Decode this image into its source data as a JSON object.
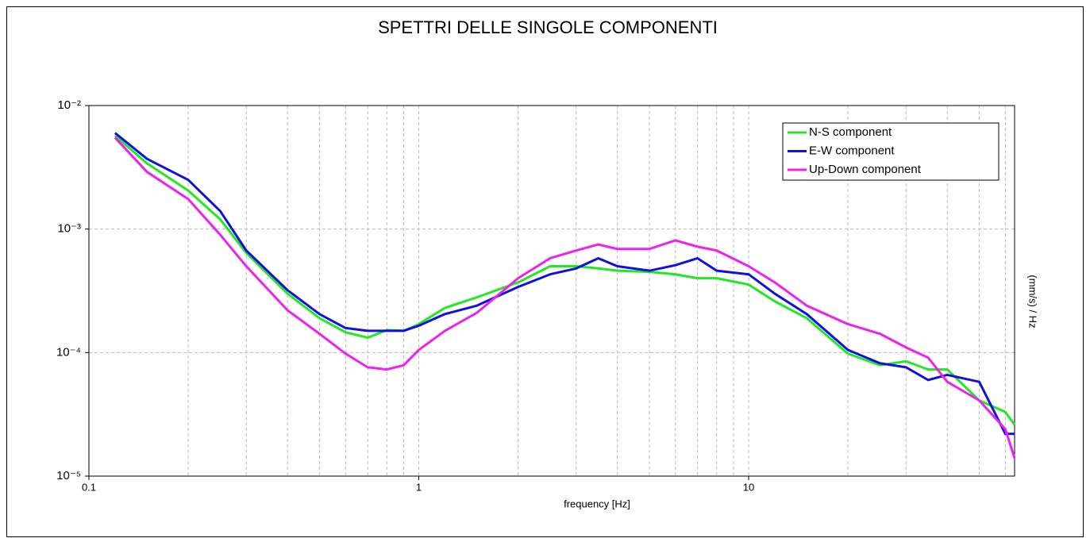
{
  "chart_data": {
    "type": "line",
    "title": "SPETTRI DELLE SINGOLE COMPONENTI",
    "xlabel": "frequency [Hz]",
    "ylabel": "(mm/s) / Hz",
    "xscale": "log",
    "yscale": "log",
    "xlim": [
      0.1,
      64
    ],
    "ylim": [
      1e-05,
      0.01
    ],
    "xticks": [
      0.1,
      1,
      10
    ],
    "xminorticks": [
      0.2,
      0.3,
      0.4,
      0.5,
      0.6,
      0.7,
      0.8,
      0.9,
      2,
      3,
      4,
      5,
      6,
      7,
      8,
      9,
      20,
      30,
      40,
      50,
      60
    ],
    "yticks": [
      {
        "value": 0.01,
        "label": "10⁻²"
      },
      {
        "value": 0.001,
        "label": "10⁻³"
      },
      {
        "value": 0.0001,
        "label": "10⁻⁴"
      },
      {
        "value": 1e-05,
        "label": "10⁻⁵"
      }
    ],
    "grid": true,
    "legend": "upper right",
    "x": [
      0.12,
      0.15,
      0.2,
      0.25,
      0.3,
      0.4,
      0.5,
      0.6,
      0.7,
      0.8,
      0.9,
      1,
      1.2,
      1.5,
      2,
      2.5,
      3,
      3.5,
      4,
      5,
      6,
      7,
      8,
      10,
      12,
      15,
      20,
      25,
      30,
      35,
      40,
      50,
      60,
      64
    ],
    "series": [
      {
        "name": "N-S component",
        "color": "#22e822",
        "values": [
          0.0057,
          0.0034,
          0.00205,
          0.0012,
          0.00064,
          0.0003,
          0.00019,
          0.000146,
          0.000132,
          0.000152,
          0.00015,
          0.00017,
          0.00023,
          0.00028,
          0.00037,
          0.0005,
          0.0005,
          0.00048,
          0.00046,
          0.00045,
          0.00043,
          0.0004,
          0.0004,
          0.000355,
          0.00026,
          0.00019,
          9.8e-05,
          7.9e-05,
          8.5e-05,
          7.3e-05,
          7.3e-05,
          4.1e-05,
          3.3e-05,
          2.6e-05
        ]
      },
      {
        "name": "E-W component",
        "color": "#1010e0",
        "values": [
          0.006,
          0.0037,
          0.0025,
          0.0014,
          0.00067,
          0.00032,
          0.000205,
          0.000158,
          0.00015,
          0.00015,
          0.00015,
          0.000165,
          0.000205,
          0.00024,
          0.00034,
          0.00043,
          0.00048,
          0.00058,
          0.0005,
          0.00046,
          0.00051,
          0.00058,
          0.00046,
          0.00043,
          0.0003,
          0.000205,
          0.000105,
          8.2e-05,
          7.6e-05,
          6e-05,
          6.6e-05,
          5.8e-05,
          2.2e-05,
          2.2e-05
        ]
      },
      {
        "name": "Up-Down component",
        "color": "#ee22ee",
        "values": [
          0.0055,
          0.0029,
          0.00175,
          0.0009,
          0.0005,
          0.00022,
          0.000142,
          9.8e-05,
          7.6e-05,
          7.3e-05,
          7.9e-05,
          0.000105,
          0.00015,
          0.00021,
          0.0004,
          0.00058,
          0.00067,
          0.00075,
          0.00069,
          0.00069,
          0.00081,
          0.00072,
          0.00067,
          0.0005,
          0.00037,
          0.00024,
          0.00017,
          0.000142,
          0.00011,
          9.1e-05,
          5.8e-05,
          4.1e-05,
          2.4e-05,
          1.4e-05
        ]
      }
    ]
  }
}
